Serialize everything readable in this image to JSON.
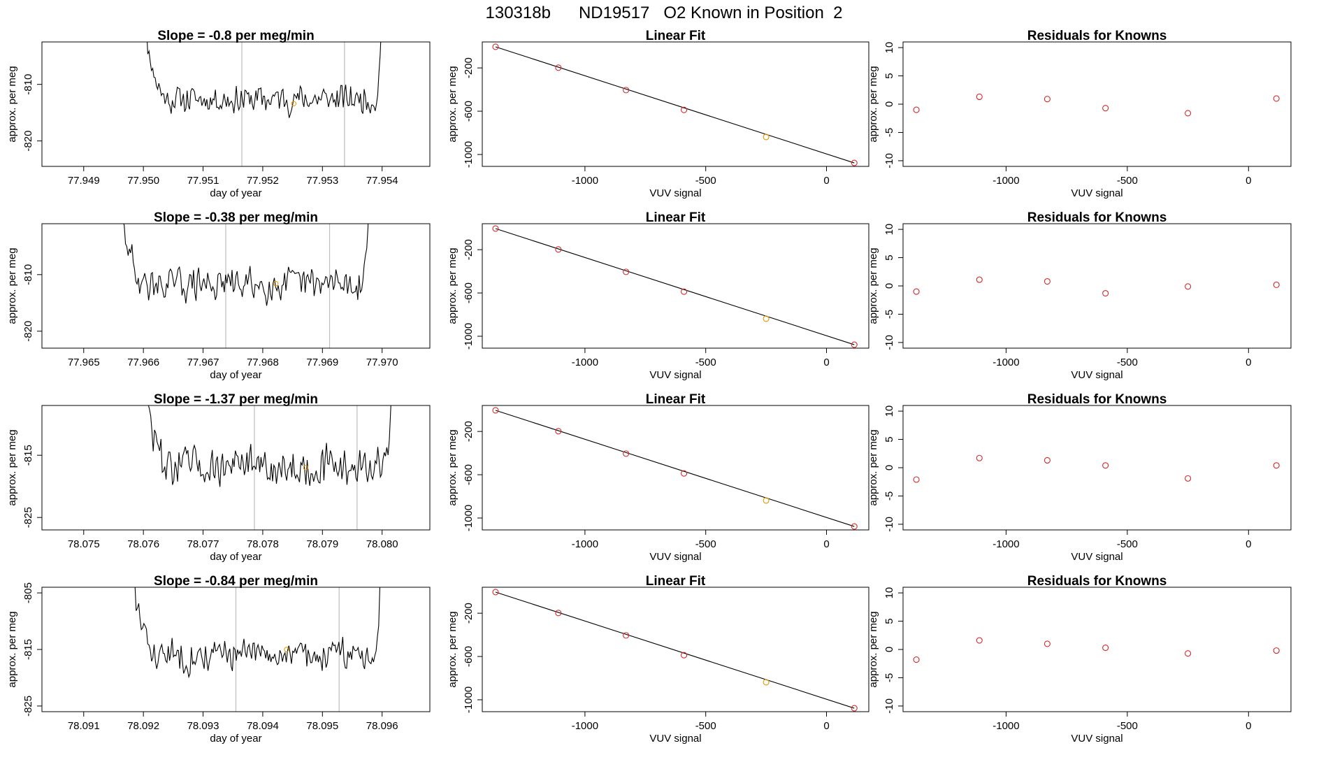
{
  "figure": {
    "title": "130318b      ND19517   O2 Known in Position  2"
  },
  "colors": {
    "trace": "#000000",
    "window_line": "#bdbdbd",
    "known_point": "#d62728",
    "highlight_point": "#e69500",
    "fit_line": "#000000"
  },
  "chart_data": [
    {
      "id": "row1-time",
      "type": "line",
      "title": "Slope =  -0.8  per meg/min",
      "xlabel": "day of year",
      "ylabel": "approx. per meg",
      "xlim": [
        77.9483,
        77.9548
      ],
      "ylim": [
        -824.5,
        -802.5
      ],
      "xticks": [
        77.949,
        77.95,
        77.951,
        77.952,
        77.953,
        77.954
      ],
      "xtick_labels": [
        "77.949",
        "77.950",
        "77.951",
        "77.952",
        "77.953",
        "77.954"
      ],
      "yticks": [
        -810,
        -820
      ],
      "ytick_labels": [
        "-810",
        "-820"
      ],
      "x_range": [
        77.94995,
        77.95407
      ],
      "baseline": -812.6,
      "noise": 1.9,
      "seed": 11,
      "vlines": [
        77.95165,
        77.95337
      ],
      "marker": [
        77.95252,
        -813.4
      ]
    },
    {
      "id": "row1-fit",
      "type": "scatter",
      "title": "Linear Fit",
      "xlabel": "VUV signal",
      "ylabel": "approx. per meg",
      "xlim": [
        -1425,
        175
      ],
      "ylim": [
        -1110,
        40
      ],
      "xticks": [
        -1000,
        -500,
        0
      ],
      "xtick_labels": [
        "-1000",
        "-500",
        "0"
      ],
      "yticks": [
        -200,
        -600,
        -1000
      ],
      "ytick_labels": [
        "-200",
        "-600",
        "-1000"
      ],
      "x": [
        -1370,
        -1110,
        -830,
        -590,
        -250,
        115
      ],
      "y": [
        -5,
        -198,
        -405,
        -588,
        -838,
        -1078
      ],
      "highlight_index": 4,
      "fit": [
        [
          -1370,
          -5
        ],
        [
          115,
          -1078
        ]
      ]
    },
    {
      "id": "row1-resid",
      "type": "scatter",
      "title": "Residuals for Knowns",
      "xlabel": "VUV signal",
      "ylabel": "approx. per meg",
      "xlim": [
        -1425,
        175
      ],
      "ylim": [
        -11,
        11
      ],
      "xticks": [
        -1000,
        -500,
        0
      ],
      "xtick_labels": [
        "-1000",
        "-500",
        "0"
      ],
      "yticks": [
        10,
        5,
        0,
        -5,
        -10
      ],
      "ytick_labels": [
        "10",
        "5",
        "0",
        "-5",
        "-10"
      ],
      "x": [
        -1370,
        -1110,
        -830,
        -590,
        -250,
        115
      ],
      "y": [
        -1.0,
        1.3,
        0.9,
        -0.7,
        -1.6,
        1.0
      ]
    },
    {
      "id": "row2-time",
      "type": "line",
      "title": "Slope =  -0.38  per meg/min",
      "xlabel": "day of year",
      "ylabel": "approx. per meg",
      "xlim": [
        77.9643,
        77.9708
      ],
      "ylim": [
        -823,
        -801
      ],
      "xticks": [
        77.965,
        77.966,
        77.967,
        77.968,
        77.969,
        77.97
      ],
      "xtick_labels": [
        "77.965",
        "77.966",
        "77.967",
        "77.968",
        "77.969",
        "77.970"
      ],
      "yticks": [
        -810,
        -820
      ],
      "ytick_labels": [
        "-810",
        "-820"
      ],
      "x_range": [
        77.96555,
        77.96985
      ],
      "baseline": -811.7,
      "noise": 2.2,
      "seed": 29,
      "vlines": [
        77.96738,
        77.96912
      ],
      "marker": [
        77.96822,
        -811.6
      ]
    },
    {
      "id": "row2-fit",
      "type": "scatter",
      "title": "Linear Fit",
      "xlabel": "VUV signal",
      "ylabel": "approx. per meg",
      "xlim": [
        -1425,
        175
      ],
      "ylim": [
        -1110,
        40
      ],
      "xticks": [
        -1000,
        -500,
        0
      ],
      "xtick_labels": [
        "-1000",
        "-500",
        "0"
      ],
      "yticks": [
        -200,
        -600,
        -1000
      ],
      "ytick_labels": [
        "-200",
        "-600",
        "-1000"
      ],
      "x": [
        -1370,
        -1110,
        -830,
        -590,
        -250,
        115
      ],
      "y": [
        -5,
        -198,
        -405,
        -588,
        -838,
        -1078
      ],
      "highlight_index": 4,
      "fit": [
        [
          -1370,
          -5
        ],
        [
          115,
          -1078
        ]
      ]
    },
    {
      "id": "row2-resid",
      "type": "scatter",
      "title": "Residuals for Knowns",
      "xlabel": "VUV signal",
      "ylabel": "approx. per meg",
      "xlim": [
        -1425,
        175
      ],
      "ylim": [
        -11,
        11
      ],
      "xticks": [
        -1000,
        -500,
        0
      ],
      "xtick_labels": [
        "-1000",
        "-500",
        "0"
      ],
      "yticks": [
        10,
        5,
        0,
        -5,
        -10
      ],
      "ytick_labels": [
        "10",
        "5",
        "0",
        "-5",
        "-10"
      ],
      "x": [
        -1370,
        -1110,
        -830,
        -590,
        -250,
        115
      ],
      "y": [
        -1.0,
        1.1,
        0.8,
        -1.3,
        -0.1,
        0.2
      ]
    },
    {
      "id": "row3-time",
      "type": "line",
      "title": "Slope =  -1.37  per meg/min",
      "xlabel": "day of year",
      "ylabel": "approx. per meg",
      "xlim": [
        78.0743,
        78.0808
      ],
      "ylim": [
        -827,
        -807
      ],
      "xticks": [
        78.075,
        78.076,
        78.077,
        78.078,
        78.079,
        78.08
      ],
      "xtick_labels": [
        "78.075",
        "78.076",
        "78.077",
        "78.078",
        "78.079",
        "78.080"
      ],
      "yticks": [
        -815,
        -825
      ],
      "ytick_labels": [
        "-815",
        "-825"
      ],
      "x_range": [
        78.07595,
        78.08025
      ],
      "baseline": -816.8,
      "noise": 2.4,
      "seed": 47,
      "vlines": [
        78.07786,
        78.07958
      ],
      "marker": [
        78.07872,
        -817.0
      ]
    },
    {
      "id": "row3-fit",
      "type": "scatter",
      "title": "Linear Fit",
      "xlabel": "VUV signal",
      "ylabel": "approx. per meg",
      "xlim": [
        -1425,
        175
      ],
      "ylim": [
        -1110,
        40
      ],
      "xticks": [
        -1000,
        -500,
        0
      ],
      "xtick_labels": [
        "-1000",
        "-500",
        "0"
      ],
      "yticks": [
        -200,
        -600,
        -1000
      ],
      "ytick_labels": [
        "-200",
        "-600",
        "-1000"
      ],
      "x": [
        -1370,
        -1110,
        -830,
        -590,
        -250,
        115
      ],
      "y": [
        -5,
        -198,
        -405,
        -588,
        -838,
        -1078
      ],
      "highlight_index": 4,
      "fit": [
        [
          -1370,
          -5
        ],
        [
          115,
          -1078
        ]
      ]
    },
    {
      "id": "row3-resid",
      "type": "scatter",
      "title": "Residuals for Knowns",
      "xlabel": "VUV signal",
      "ylabel": "approx. per meg",
      "xlim": [
        -1425,
        175
      ],
      "ylim": [
        -11,
        11
      ],
      "xticks": [
        -1000,
        -500,
        0
      ],
      "xtick_labels": [
        "-1000",
        "-500",
        "0"
      ],
      "yticks": [
        10,
        5,
        0,
        -5,
        -10
      ],
      "ytick_labels": [
        "10",
        "5",
        "0",
        "-5",
        "-10"
      ],
      "x": [
        -1370,
        -1110,
        -830,
        -590,
        -250,
        115
      ],
      "y": [
        -2.1,
        1.7,
        1.3,
        0.4,
        -1.9,
        0.4
      ]
    },
    {
      "id": "row4-time",
      "type": "line",
      "title": "Slope =  -0.84  per meg/min",
      "xlabel": "day of year",
      "ylabel": "approx. per meg",
      "xlim": [
        78.0903,
        78.0968
      ],
      "ylim": [
        -826,
        -804
      ],
      "xticks": [
        78.091,
        78.092,
        78.093,
        78.094,
        78.095,
        78.096
      ],
      "xtick_labels": [
        "78.091",
        "78.092",
        "78.093",
        "78.094",
        "78.095",
        "78.096"
      ],
      "yticks": [
        -805,
        -815,
        -825
      ],
      "ytick_labels": [
        "-805",
        "-815",
        "-825"
      ],
      "x_range": [
        78.09175,
        78.09605
      ],
      "baseline": -816.0,
      "noise": 2.1,
      "seed": 83,
      "vlines": [
        78.09355,
        78.09528
      ],
      "marker": [
        78.0944,
        -815.0
      ]
    },
    {
      "id": "row4-fit",
      "type": "scatter",
      "title": "Linear Fit",
      "xlabel": "VUV signal",
      "ylabel": "approx. per meg",
      "xlim": [
        -1425,
        175
      ],
      "ylim": [
        -1110,
        40
      ],
      "xticks": [
        -1000,
        -500,
        0
      ],
      "xtick_labels": [
        "-1000",
        "-500",
        "0"
      ],
      "yticks": [
        -200,
        -600,
        -1000
      ],
      "ytick_labels": [
        "-200",
        "-600",
        "-1000"
      ],
      "x": [
        -1370,
        -1110,
        -830,
        -590,
        -250,
        115
      ],
      "y": [
        -5,
        -198,
        -405,
        -588,
        -838,
        -1078
      ],
      "highlight_index": 4,
      "fit": [
        [
          -1370,
          -5
        ],
        [
          115,
          -1078
        ]
      ]
    },
    {
      "id": "row4-resid",
      "type": "scatter",
      "title": "Residuals for Knowns",
      "xlabel": "VUV signal",
      "ylabel": "approx. per meg",
      "xlim": [
        -1425,
        175
      ],
      "ylim": [
        -11,
        11
      ],
      "xticks": [
        -1000,
        -500,
        0
      ],
      "xtick_labels": [
        "-1000",
        "-500",
        "0"
      ],
      "yticks": [
        10,
        5,
        0,
        -5,
        -10
      ],
      "ytick_labels": [
        "10",
        "5",
        "0",
        "-5",
        "-10"
      ],
      "x": [
        -1370,
        -1110,
        -830,
        -590,
        -250,
        115
      ],
      "y": [
        -1.8,
        1.6,
        1.0,
        0.3,
        -0.7,
        -0.2
      ]
    }
  ]
}
